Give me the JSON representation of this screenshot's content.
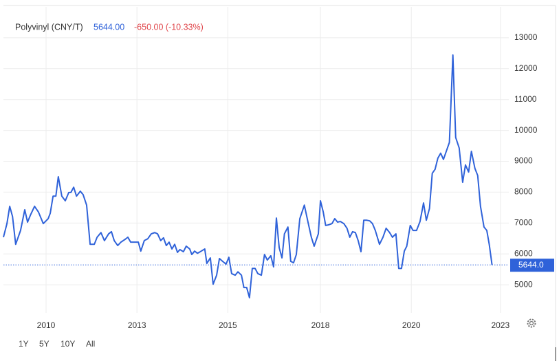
{
  "chart_data": {
    "type": "line",
    "series": [
      {
        "name": "Polyvinyl (CNY/T)",
        "color": "#2f62d9",
        "values": [
          6540,
          6980,
          7540,
          7210,
          6310,
          6760,
          7430,
          7030,
          7250,
          7540,
          7360,
          6980,
          7140,
          7320,
          7870,
          7870,
          8500,
          7870,
          7720,
          7990,
          7990,
          8160,
          7870,
          8030,
          7920,
          7580,
          6310,
          6310,
          6540,
          6690,
          6430,
          6650,
          6720,
          6430,
          6270,
          6380,
          6470,
          6540,
          6380,
          6380,
          6380,
          6090,
          6430,
          6490,
          6650,
          6690,
          6650,
          6430,
          6520,
          6270,
          6380,
          6160,
          6310,
          6050,
          6140,
          6070,
          6250,
          6160,
          5980,
          6090,
          6020,
          6070,
          6160,
          5690,
          5870,
          5020,
          5310,
          5850,
          5760,
          5670,
          5890,
          5360,
          5310,
          5420,
          5310,
          4910,
          4910,
          4580,
          5530,
          5530,
          5360,
          5310,
          5980,
          5800,
          5940,
          5580,
          7160,
          6200,
          5870,
          6650,
          6870,
          5760,
          5710,
          5980,
          7140,
          7580,
          7050,
          6540,
          6250,
          6650,
          7720,
          7360,
          6920,
          6940,
          6980,
          7140,
          7030,
          7050,
          6980,
          6830,
          6540,
          6720,
          6690,
          6430,
          6070,
          7090,
          7090,
          7070,
          6980,
          6760,
          6310,
          6540,
          6830,
          6690,
          6540,
          6650,
          5530,
          5530,
          6090,
          6250,
          6920,
          6760,
          6760,
          7050,
          7650,
          7090,
          7470,
          8610,
          8740,
          9100,
          9260,
          9060,
          9320,
          9610,
          12440,
          9770,
          9430,
          8320,
          8880,
          8650,
          9320,
          8770,
          8540,
          7540,
          6870,
          6760,
          6310,
          5644
        ]
      }
    ],
    "x": [
      2008.78,
      2008.88,
      2008.96,
      2009.04,
      2009.13,
      2009.27,
      2009.39,
      2009.47,
      2009.55,
      2009.67,
      2009.78,
      2009.92,
      2010.06,
      2010.12,
      2010.2,
      2010.28,
      2010.35,
      2010.45,
      2010.55,
      2010.65,
      2010.71,
      2010.79,
      2010.87,
      2010.98,
      2011.06,
      2011.16,
      2011.26,
      2011.38,
      2011.46,
      2011.57,
      2011.67,
      2011.79,
      2011.87,
      2011.95,
      2012.05,
      2012.14,
      2012.26,
      2012.34,
      2012.42,
      2012.54,
      2012.64,
      2012.71,
      2012.81,
      2012.91,
      2013.01,
      2013.11,
      2013.19,
      2013.28,
      2013.36,
      2013.44,
      2013.52,
      2013.6,
      2013.68,
      2013.76,
      2013.83,
      2013.93,
      2014.01,
      2014.11,
      2014.17,
      2014.25,
      2014.33,
      2014.41,
      2014.54,
      2014.6,
      2014.7,
      2014.78,
      2014.88,
      2014.96,
      2015.05,
      2015.15,
      2015.23,
      2015.31,
      2015.41,
      2015.49,
      2015.59,
      2015.66,
      2015.74,
      2015.82,
      2015.9,
      2015.98,
      2016.06,
      2016.16,
      2016.25,
      2016.33,
      2016.43,
      2016.51,
      2016.59,
      2016.67,
      2016.75,
      2016.82,
      2016.92,
      2017,
      2017.08,
      2017.16,
      2017.26,
      2017.39,
      2017.49,
      2017.59,
      2017.67,
      2017.79,
      2017.85,
      2017.93,
      2018,
      2018.08,
      2018.18,
      2018.26,
      2018.34,
      2018.42,
      2018.52,
      2018.61,
      2018.69,
      2018.77,
      2018.85,
      2018.93,
      2019.01,
      2019.09,
      2019.18,
      2019.26,
      2019.34,
      2019.42,
      2019.54,
      2019.64,
      2019.73,
      2019.83,
      2019.91,
      2020.01,
      2020.09,
      2020.17,
      2020.25,
      2020.32,
      2020.42,
      2020.5,
      2020.6,
      2020.7,
      2020.8,
      2020.88,
      2020.97,
      2021.05,
      2021.13,
      2021.21,
      2021.29,
      2021.37,
      2021.45,
      2021.54,
      2021.64,
      2021.72,
      2021.82,
      2021.92,
      2022,
      2022.09,
      2022.17,
      2022.27,
      2022.35,
      2022.43,
      2022.53,
      2022.61,
      2022.68,
      2022.76
    ],
    "price": "5644.00",
    "change": "-650.00 (-10.33%)",
    "last_value": 5644,
    "last_value_label": "5644.0",
    "xlim": [
      2008.78,
      2023.24
    ],
    "xticks": [
      2010,
      {
        "value": 2012.6,
        "label": "2013"
      },
      {
        "value": 2015.2,
        "label": "2015"
      },
      {
        "value": 2017.85,
        "label": "2018"
      },
      {
        "value": 2020.45,
        "label": "2020"
      },
      2023
    ],
    "ylim": [
      4090,
      14000
    ],
    "yticks": [
      5000,
      6000,
      7000,
      8000,
      9000,
      10000,
      11000,
      12000,
      13000
    ],
    "grid": true,
    "range_buttons": [
      "1Y",
      "5Y",
      "10Y",
      "All"
    ]
  }
}
